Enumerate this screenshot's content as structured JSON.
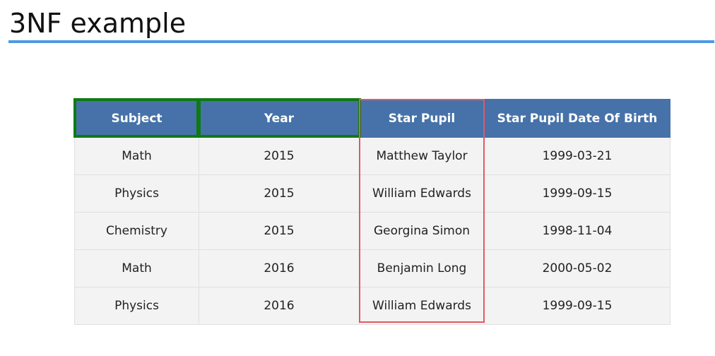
{
  "slide": {
    "title": "3NF example"
  },
  "table": {
    "columns": [
      "Subject",
      "Year",
      "Star Pupil",
      "Star Pupil Date Of Birth"
    ],
    "rows": [
      [
        "Math",
        "2015",
        "Matthew Taylor",
        "1999-03-21"
      ],
      [
        "Physics",
        "2015",
        "William Edwards",
        "1999-09-15"
      ],
      [
        "Chemistry",
        "2015",
        "Georgina Simon",
        "1998-11-04"
      ],
      [
        "Math",
        "2016",
        "Benjamin Long",
        "2000-05-02"
      ],
      [
        "Physics",
        "2016",
        "William Edwards",
        "1999-09-15"
      ]
    ]
  },
  "colors": {
    "title_rule": "#4f9ae0",
    "header_bg": "#4672a9",
    "cell_bg": "#f3f3f3",
    "key_highlight": "#0f7a12",
    "dependent_highlight": "#e05a63"
  }
}
